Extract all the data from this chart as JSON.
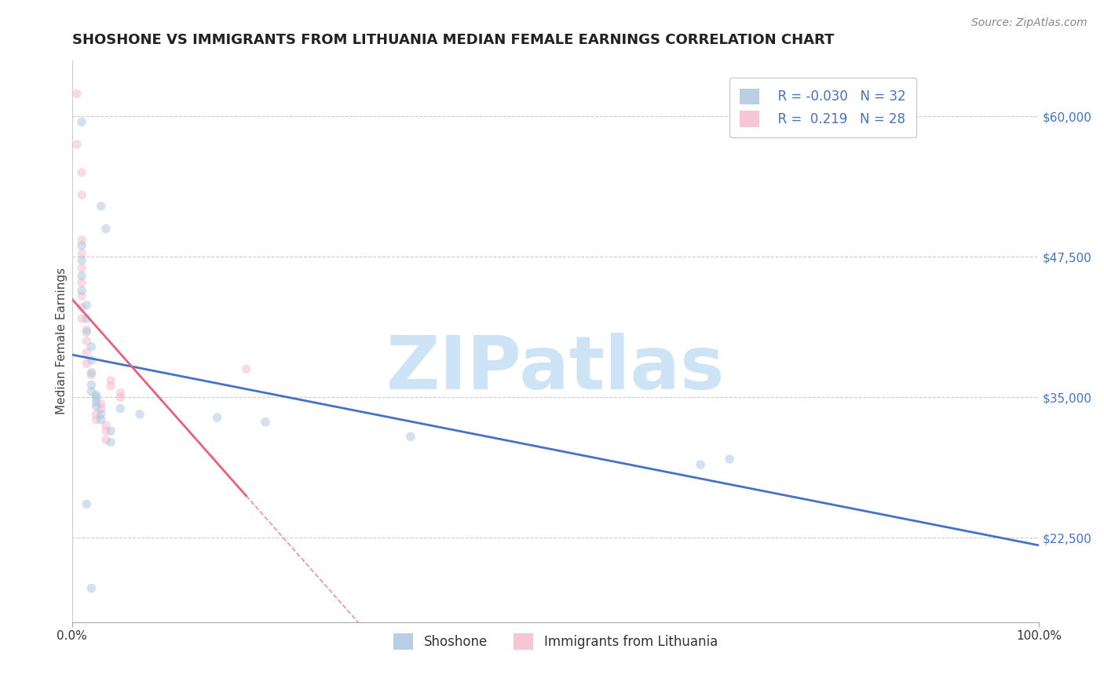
{
  "title": "SHOSHONE VS IMMIGRANTS FROM LITHUANIA MEDIAN FEMALE EARNINGS CORRELATION CHART",
  "source_text": "Source: ZipAtlas.com",
  "ylabel": "Median Female Earnings",
  "watermark": "ZIPatlas",
  "xmin": 0.0,
  "xmax": 1.0,
  "xtick_positions": [
    0.0,
    1.0
  ],
  "xtick_labels": [
    "0.0%",
    "100.0%"
  ],
  "ytick_values": [
    22500,
    35000,
    47500,
    60000
  ],
  "ytick_labels": [
    "$22,500",
    "$35,000",
    "$47,500",
    "$60,000"
  ],
  "legend_entries": [
    {
      "label": "Shoshone",
      "color": "#a8c4e0",
      "line_color": "#4472c4",
      "R": "-0.030",
      "N": "32"
    },
    {
      "label": "Immigrants from Lithuania",
      "color": "#f4b8c8",
      "line_color": "#e8607a",
      "R": "0.219",
      "N": "28"
    }
  ],
  "shoshone_points": [
    [
      0.01,
      59500
    ],
    [
      0.03,
      52000
    ],
    [
      0.035,
      50000
    ],
    [
      0.01,
      48500
    ],
    [
      0.01,
      47200
    ],
    [
      0.01,
      45800
    ],
    [
      0.01,
      44500
    ],
    [
      0.015,
      43200
    ],
    [
      0.015,
      42000
    ],
    [
      0.015,
      40800
    ],
    [
      0.02,
      39500
    ],
    [
      0.02,
      38300
    ],
    [
      0.02,
      37200
    ],
    [
      0.02,
      36100
    ],
    [
      0.02,
      35500
    ],
    [
      0.025,
      35200
    ],
    [
      0.025,
      35000
    ],
    [
      0.025,
      34600
    ],
    [
      0.025,
      34200
    ],
    [
      0.03,
      33500
    ],
    [
      0.03,
      33000
    ],
    [
      0.04,
      32000
    ],
    [
      0.04,
      31000
    ],
    [
      0.05,
      34000
    ],
    [
      0.07,
      33500
    ],
    [
      0.15,
      33200
    ],
    [
      0.2,
      32800
    ],
    [
      0.35,
      31500
    ],
    [
      0.65,
      29000
    ],
    [
      0.68,
      29500
    ],
    [
      0.015,
      25500
    ],
    [
      0.02,
      18000
    ]
  ],
  "lithuania_points": [
    [
      0.005,
      62000
    ],
    [
      0.005,
      57500
    ],
    [
      0.01,
      55000
    ],
    [
      0.01,
      53000
    ],
    [
      0.01,
      49000
    ],
    [
      0.01,
      47800
    ],
    [
      0.01,
      46500
    ],
    [
      0.01,
      45200
    ],
    [
      0.01,
      44000
    ],
    [
      0.01,
      43000
    ],
    [
      0.01,
      42000
    ],
    [
      0.015,
      41000
    ],
    [
      0.015,
      40000
    ],
    [
      0.015,
      39000
    ],
    [
      0.015,
      38000
    ],
    [
      0.02,
      37000
    ],
    [
      0.04,
      36500
    ],
    [
      0.04,
      36000
    ],
    [
      0.05,
      35400
    ],
    [
      0.05,
      35000
    ],
    [
      0.03,
      34400
    ],
    [
      0.03,
      34000
    ],
    [
      0.025,
      33500
    ],
    [
      0.025,
      33000
    ],
    [
      0.035,
      32500
    ],
    [
      0.035,
      32000
    ],
    [
      0.18,
      37500
    ],
    [
      0.035,
      31200
    ]
  ],
  "shoshone_line_color": "#4472c4",
  "lithuania_line_color": "#e8607a",
  "title_color": "#222222",
  "ylabel_color": "#444444",
  "background_color": "#ffffff",
  "grid_color": "#cccccc",
  "watermark_color": "#cce4f5",
  "title_fontsize": 13,
  "axis_label_fontsize": 11,
  "tick_fontsize": 11,
  "scatter_size": 70,
  "scatter_alpha": 0.5
}
